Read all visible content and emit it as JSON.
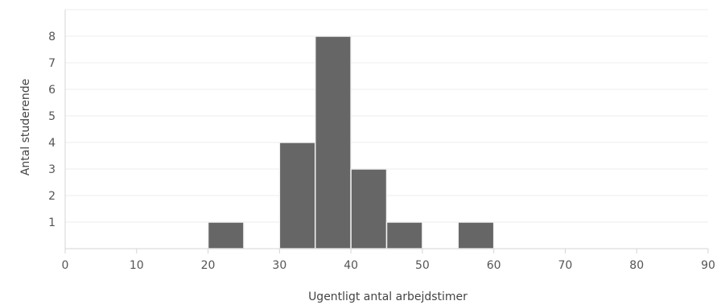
{
  "chart_data": {
    "type": "bar",
    "subtype": "histogram",
    "xlabel": "Ugentligt antal arbejdstimer",
    "ylabel": "Antal studerende",
    "xlim": [
      0,
      90
    ],
    "ylim": [
      0,
      9
    ],
    "x_ticks": [
      0,
      10,
      20,
      30,
      40,
      50,
      60,
      70,
      80,
      90
    ],
    "y_ticks": [
      1,
      2,
      3,
      4,
      5,
      6,
      7,
      8
    ],
    "bins": [
      {
        "start": 20,
        "end": 25,
        "count": 1
      },
      {
        "start": 30,
        "end": 35,
        "count": 4
      },
      {
        "start": 35,
        "end": 40,
        "count": 8
      },
      {
        "start": 40,
        "end": 45,
        "count": 3
      },
      {
        "start": 45,
        "end": 50,
        "count": 1
      },
      {
        "start": 55,
        "end": 60,
        "count": 1
      }
    ],
    "bar_color": "#666666",
    "grid": true,
    "legend": false
  }
}
